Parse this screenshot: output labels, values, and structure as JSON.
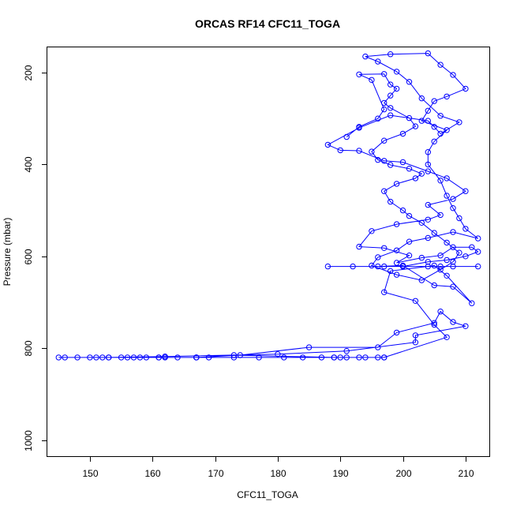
{
  "chart_data": {
    "type": "line",
    "title": "ORCAS RF14 CFC11_TOGA",
    "xlabel": "CFC11_TOGA",
    "ylabel": "Pressure (mbar)",
    "xlim": [
      143.2,
      213.8
    ],
    "ylim": [
      1035,
      145
    ],
    "y_reversed": true,
    "x_ticks": [
      150,
      160,
      170,
      180,
      190,
      200,
      210
    ],
    "y_ticks": [
      200,
      400,
      600,
      800,
      1000
    ],
    "grid": false,
    "legend": "none",
    "color": "#0000ff",
    "series": [
      {
        "points": [
          [
            197,
            820
          ],
          [
            196,
            820
          ],
          [
            194,
            820
          ],
          [
            193,
            820
          ],
          [
            191,
            820
          ],
          [
            190,
            820
          ],
          [
            189,
            820
          ],
          [
            187,
            820
          ],
          [
            184,
            820
          ],
          [
            181,
            820
          ],
          [
            177,
            820
          ],
          [
            173,
            820
          ],
          [
            169,
            820
          ],
          [
            167,
            820
          ],
          [
            164,
            820
          ],
          [
            162,
            820
          ],
          [
            161,
            820
          ],
          [
            159,
            820
          ],
          [
            158,
            820
          ],
          [
            157,
            820
          ],
          [
            156,
            820
          ],
          [
            155,
            820
          ],
          [
            153,
            820
          ],
          [
            152,
            820
          ],
          [
            151,
            820
          ],
          [
            150,
            820
          ],
          [
            148,
            820
          ],
          [
            146,
            820
          ],
          [
            145,
            820
          ],
          [
            167,
            820
          ],
          [
            174,
            815
          ],
          [
            185,
            798
          ],
          [
            196,
            798
          ],
          [
            199,
            766
          ],
          [
            205,
            745
          ],
          [
            206,
            720
          ],
          [
            208,
            743
          ],
          [
            210,
            752
          ],
          [
            202,
            772
          ],
          [
            202,
            787
          ],
          [
            191,
            806
          ],
          [
            180,
            813
          ],
          [
            162,
            818
          ],
          [
            153,
            820
          ],
          [
            161,
            820
          ],
          [
            167,
            820
          ],
          [
            173,
            815
          ],
          [
            189,
            820
          ],
          [
            197,
            820
          ],
          [
            207,
            776
          ],
          [
            205,
            749
          ],
          [
            202,
            697
          ],
          [
            197,
            678
          ],
          [
            198,
            632
          ],
          [
            205,
            620
          ],
          [
            207,
            642
          ],
          [
            211,
            702
          ],
          [
            208,
            666
          ],
          [
            205,
            663
          ],
          [
            200,
            620
          ],
          [
            196,
            622
          ],
          [
            192,
            622
          ],
          [
            188,
            622
          ],
          [
            197,
            622
          ],
          [
            204,
            622
          ],
          [
            208,
            622
          ],
          [
            212,
            622
          ],
          [
            206,
            622
          ],
          [
            200,
            622
          ],
          [
            204,
            612
          ],
          [
            207,
            608
          ],
          [
            210,
            600
          ],
          [
            212,
            590
          ],
          [
            211,
            580
          ],
          [
            208,
            580
          ],
          [
            206,
            598
          ],
          [
            203,
            603
          ],
          [
            199,
            614
          ],
          [
            201,
            598
          ],
          [
            197,
            582
          ],
          [
            193,
            579
          ],
          [
            195,
            545
          ],
          [
            199,
            530
          ],
          [
            204,
            520
          ],
          [
            206,
            510
          ],
          [
            204,
            488
          ],
          [
            208,
            475
          ],
          [
            210,
            458
          ],
          [
            207,
            430
          ],
          [
            204,
            415
          ],
          [
            200,
            395
          ],
          [
            197,
            392
          ],
          [
            193,
            370
          ],
          [
            190,
            369
          ],
          [
            188,
            357
          ],
          [
            193,
            320
          ],
          [
            198,
            293
          ],
          [
            204,
            305
          ],
          [
            205,
            318
          ],
          [
            206,
            333
          ],
          [
            209,
            308
          ],
          [
            206,
            294
          ],
          [
            203,
            256
          ],
          [
            201,
            220
          ],
          [
            199,
            198
          ],
          [
            196,
            176
          ],
          [
            194,
            165
          ],
          [
            198,
            160
          ],
          [
            204,
            158
          ],
          [
            206,
            183
          ],
          [
            208,
            205
          ],
          [
            210,
            235
          ],
          [
            207,
            252
          ],
          [
            205,
            262
          ],
          [
            204,
            283
          ],
          [
            203,
            305
          ],
          [
            207,
            325
          ],
          [
            205,
            350
          ],
          [
            204,
            373
          ],
          [
            204,
            400
          ],
          [
            206,
            435
          ],
          [
            207,
            468
          ],
          [
            208,
            495
          ],
          [
            209,
            517
          ],
          [
            210,
            540
          ],
          [
            212,
            561
          ],
          [
            208,
            547
          ],
          [
            204,
            560
          ],
          [
            201,
            568
          ],
          [
            199,
            587
          ],
          [
            196,
            602
          ],
          [
            195,
            620
          ],
          [
            199,
            640
          ],
          [
            203,
            652
          ],
          [
            206,
            629
          ],
          [
            208,
            612
          ],
          [
            209,
            592
          ],
          [
            207,
            570
          ],
          [
            205,
            549
          ],
          [
            203,
            527
          ],
          [
            201,
            512
          ],
          [
            200,
            500
          ],
          [
            198,
            481
          ],
          [
            197,
            458
          ],
          [
            199,
            442
          ],
          [
            202,
            430
          ],
          [
            203,
            420
          ],
          [
            201,
            409
          ],
          [
            198,
            401
          ],
          [
            196,
            390
          ],
          [
            195,
            372
          ],
          [
            197,
            348
          ],
          [
            200,
            333
          ],
          [
            202,
            317
          ],
          [
            201,
            299
          ],
          [
            198,
            277
          ],
          [
            197,
            266
          ],
          [
            198,
            250
          ],
          [
            199,
            235
          ],
          [
            198,
            226
          ],
          [
            197,
            203
          ],
          [
            193,
            204
          ],
          [
            195,
            216
          ],
          [
            197,
            280
          ],
          [
            196,
            300
          ],
          [
            193,
            318
          ],
          [
            191,
            340
          ]
        ]
      }
    ]
  }
}
